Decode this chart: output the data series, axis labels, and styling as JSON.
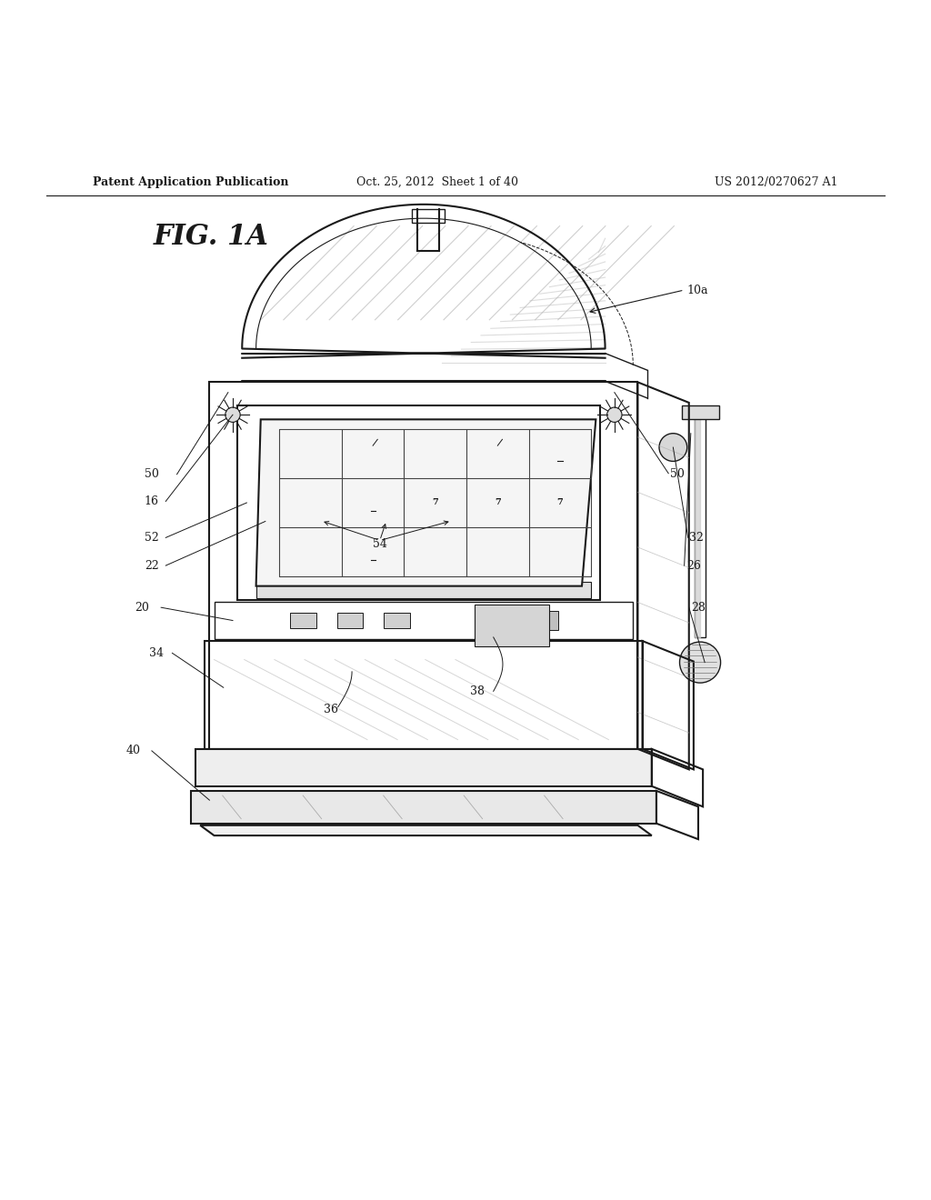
{
  "title": "FIG. 1A",
  "header_left": "Patent Application Publication",
  "header_center": "Oct. 25, 2012  Sheet 1 of 40",
  "header_right": "US 2012/0270627 A1",
  "bg_color": "#ffffff",
  "line_color": "#1a1a1a",
  "label_color": "#1a1a1a",
  "shade_color": "#cccccc"
}
